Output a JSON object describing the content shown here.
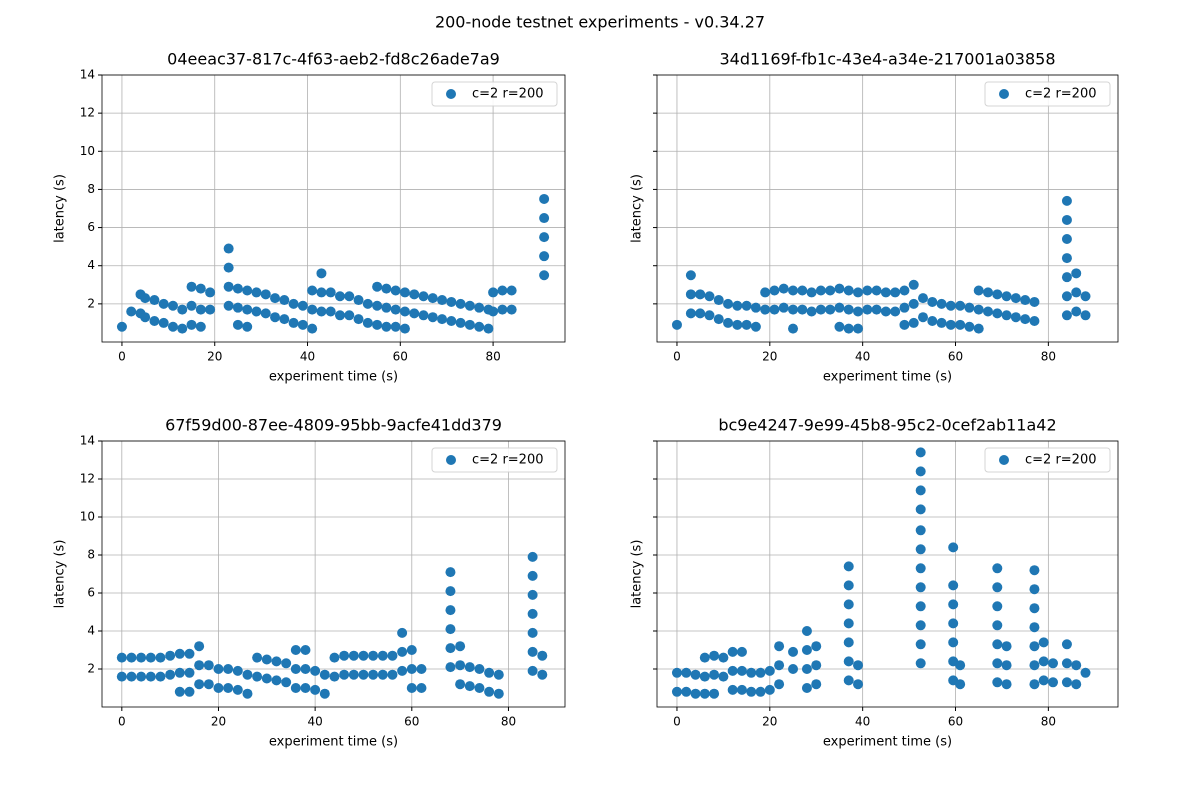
{
  "title": "200-node testnet experiments - v0.34.27",
  "chart_data": [
    {
      "type": "scatter",
      "title": "04eeac37-817c-4f63-aeb2-fd8c26ade7a9",
      "xlabel": "experiment time (s)",
      "ylabel": "latency (s)",
      "xlim": [
        -4.3,
        95.5
      ],
      "ylim": [
        0,
        14
      ],
      "xticks": [
        0,
        20,
        40,
        60,
        80
      ],
      "yticks": [
        2,
        4,
        6,
        8,
        10,
        12,
        14
      ],
      "ytick_labels": true,
      "grid": true,
      "legend": "upper right",
      "series": [
        {
          "name": "c=2 r=200",
          "color": "#1f77b4",
          "x": [
            0,
            2,
            4,
            4,
            5,
            5,
            7,
            7,
            9,
            9,
            11,
            11,
            13,
            13,
            15,
            15,
            15,
            17,
            17,
            17,
            19,
            19,
            23,
            23,
            23,
            23,
            25,
            25,
            25,
            27,
            27,
            27,
            29,
            29,
            31,
            31,
            33,
            33,
            35,
            35,
            37,
            37,
            39,
            39,
            41,
            41,
            41,
            43,
            43,
            43,
            45,
            45,
            47,
            47,
            49,
            49,
            51,
            51,
            53,
            53,
            55,
            55,
            55,
            57,
            57,
            57,
            59,
            59,
            59,
            61,
            61,
            61,
            63,
            63,
            65,
            65,
            67,
            67,
            69,
            69,
            71,
            71,
            73,
            73,
            75,
            75,
            77,
            77,
            79,
            79,
            80,
            80,
            82,
            82,
            84,
            84,
            91,
            91,
            91,
            91,
            91
          ],
          "y": [
            0.8,
            1.6,
            2.5,
            1.5,
            2.3,
            1.3,
            2.2,
            1.1,
            2.0,
            1.0,
            1.9,
            0.8,
            1.7,
            0.7,
            2.9,
            1.9,
            0.9,
            2.8,
            1.7,
            0.8,
            2.6,
            1.7,
            4.9,
            3.9,
            2.9,
            1.9,
            2.8,
            1.8,
            0.9,
            2.7,
            1.7,
            0.8,
            2.6,
            1.6,
            2.5,
            1.5,
            2.3,
            1.3,
            2.2,
            1.2,
            2.0,
            1.0,
            1.9,
            0.9,
            2.7,
            1.7,
            0.7,
            3.6,
            2.6,
            1.6,
            2.6,
            1.6,
            2.4,
            1.4,
            2.4,
            1.4,
            2.2,
            1.2,
            2.0,
            1.0,
            2.9,
            1.9,
            0.9,
            2.8,
            1.8,
            0.8,
            2.7,
            1.7,
            0.8,
            2.6,
            1.6,
            0.7,
            2.5,
            1.5,
            2.4,
            1.4,
            2.3,
            1.3,
            2.2,
            1.2,
            2.1,
            1.1,
            2.0,
            1.0,
            1.9,
            0.9,
            1.8,
            0.8,
            1.7,
            0.7,
            2.6,
            1.6,
            2.7,
            1.7,
            2.7,
            1.7,
            7.5,
            6.5,
            5.5,
            4.5,
            3.5
          ]
        }
      ]
    },
    {
      "type": "scatter",
      "title": "34d1169f-fb1c-43e4-a34e-217001a03858",
      "xlabel": "experiment time (s)",
      "ylabel": "latency (s)",
      "xlim": [
        -4.3,
        95
      ],
      "ylim": [
        0,
        14
      ],
      "xticks": [
        0,
        20,
        40,
        60,
        80
      ],
      "yticks": [
        2,
        4,
        6,
        8,
        10,
        12,
        14
      ],
      "ytick_labels": false,
      "grid": true,
      "legend": "upper right",
      "series": [
        {
          "name": "c=2 r=200",
          "color": "#1f77b4",
          "x": [
            0,
            3,
            3,
            3,
            5,
            5,
            7,
            7,
            9,
            9,
            11,
            11,
            13,
            13,
            15,
            15,
            17,
            17,
            19,
            19,
            21,
            21,
            23,
            23,
            25,
            25,
            25,
            27,
            27,
            29,
            29,
            31,
            31,
            33,
            33,
            35,
            35,
            35,
            37,
            37,
            37,
            39,
            39,
            39,
            41,
            41,
            43,
            43,
            45,
            45,
            47,
            47,
            49,
            49,
            49,
            51,
            51,
            51,
            53,
            53,
            55,
            55,
            57,
            57,
            59,
            59,
            61,
            61,
            63,
            63,
            65,
            65,
            65,
            67,
            67,
            69,
            69,
            71,
            71,
            73,
            73,
            75,
            75,
            77,
            77,
            84,
            84,
            84,
            84,
            84,
            84,
            84,
            86,
            86,
            86,
            88,
            88
          ],
          "y": [
            0.9,
            3.5,
            2.5,
            1.5,
            2.5,
            1.5,
            2.4,
            1.4,
            2.2,
            1.2,
            2.0,
            1.0,
            1.9,
            0.9,
            1.9,
            0.9,
            1.8,
            0.8,
            2.6,
            1.7,
            2.7,
            1.7,
            2.8,
            1.8,
            2.7,
            1.7,
            0.7,
            2.7,
            1.7,
            2.6,
            1.6,
            2.7,
            1.7,
            2.7,
            1.7,
            2.8,
            1.8,
            0.8,
            2.7,
            1.7,
            0.7,
            2.6,
            1.6,
            0.7,
            2.7,
            1.7,
            2.7,
            1.7,
            2.6,
            1.6,
            2.6,
            1.6,
            2.7,
            1.8,
            0.9,
            3.0,
            2.0,
            1.0,
            2.3,
            1.3,
            2.1,
            1.1,
            2.0,
            1.0,
            1.9,
            0.9,
            1.9,
            0.9,
            1.8,
            0.8,
            2.7,
            1.7,
            0.7,
            2.6,
            1.6,
            2.5,
            1.5,
            2.4,
            1.4,
            2.3,
            1.3,
            2.2,
            1.2,
            2.1,
            1.1,
            7.4,
            6.4,
            5.4,
            4.4,
            3.4,
            2.4,
            1.4,
            3.6,
            2.6,
            1.6,
            2.4,
            1.4
          ]
        }
      ]
    },
    {
      "type": "scatter",
      "title": "67f59d00-87ee-4809-95bb-9acfe41dd379",
      "xlabel": "experiment time (s)",
      "ylabel": "latency (s)",
      "xlim": [
        -4.1,
        91.7
      ],
      "ylim": [
        0,
        14
      ],
      "xticks": [
        0,
        20,
        40,
        60,
        80
      ],
      "yticks": [
        2,
        4,
        6,
        8,
        10,
        12,
        14
      ],
      "ytick_labels": true,
      "grid": true,
      "legend": "upper right",
      "series": [
        {
          "name": "c=2 r=200",
          "color": "#1f77b4",
          "x": [
            0,
            0,
            2,
            2,
            4,
            4,
            6,
            6,
            8,
            8,
            10,
            10,
            12,
            12,
            12,
            14,
            14,
            14,
            16,
            16,
            16,
            18,
            18,
            20,
            20,
            22,
            22,
            24,
            24,
            26,
            26,
            28,
            28,
            30,
            30,
            32,
            32,
            34,
            34,
            36,
            36,
            36,
            38,
            38,
            38,
            40,
            40,
            42,
            42,
            44,
            44,
            46,
            46,
            48,
            48,
            50,
            50,
            52,
            52,
            54,
            54,
            56,
            56,
            58,
            58,
            58,
            60,
            60,
            60,
            62,
            62,
            68,
            68,
            68,
            68,
            68,
            68,
            70,
            70,
            70,
            72,
            72,
            74,
            74,
            76,
            76,
            78,
            78,
            85,
            85,
            85,
            85,
            85,
            85,
            85,
            87,
            87
          ],
          "y": [
            2.6,
            1.6,
            2.6,
            1.6,
            2.6,
            1.6,
            2.6,
            1.6,
            2.6,
            1.6,
            2.7,
            1.7,
            2.8,
            1.8,
            0.8,
            2.8,
            1.8,
            0.8,
            3.2,
            2.2,
            1.2,
            2.2,
            1.2,
            2.0,
            1.0,
            2.0,
            1.0,
            1.9,
            0.9,
            1.7,
            0.7,
            2.6,
            1.6,
            2.5,
            1.5,
            2.4,
            1.4,
            2.3,
            1.3,
            3.0,
            2.0,
            1.0,
            3.0,
            2.0,
            1.0,
            1.9,
            0.9,
            1.7,
            0.7,
            2.6,
            1.6,
            2.7,
            1.7,
            2.7,
            1.7,
            2.7,
            1.7,
            2.7,
            1.7,
            2.7,
            1.7,
            2.7,
            1.7,
            3.9,
            2.9,
            1.9,
            3.0,
            2.0,
            1.0,
            2.0,
            1.0,
            7.1,
            6.1,
            5.1,
            4.1,
            3.1,
            2.1,
            3.2,
            2.2,
            1.2,
            2.1,
            1.1,
            2.0,
            1.0,
            1.8,
            0.8,
            1.7,
            0.7,
            7.9,
            6.9,
            5.9,
            4.9,
            3.9,
            2.9,
            1.9,
            2.7,
            1.7
          ]
        }
      ]
    },
    {
      "type": "scatter",
      "title": "bc9e4247-9e99-45b8-95c2-0cef2ab11a42",
      "xlabel": "experiment time (s)",
      "ylabel": "latency (s)",
      "xlim": [
        -4.3,
        95
      ],
      "ylim": [
        0,
        14
      ],
      "xticks": [
        0,
        20,
        40,
        60,
        80
      ],
      "yticks": [
        2,
        4,
        6,
        8,
        10,
        12,
        14
      ],
      "ytick_labels": false,
      "grid": true,
      "legend": "upper right",
      "series": [
        {
          "name": "c=2 r=200",
          "color": "#1f77b4",
          "x": [
            0,
            0,
            2,
            2,
            4,
            4,
            6,
            6,
            6,
            8,
            8,
            8,
            10,
            10,
            12,
            12,
            12,
            14,
            14,
            14,
            16,
            16,
            18,
            18,
            20,
            20,
            22,
            22,
            22,
            25,
            25,
            28,
            28,
            28,
            28,
            30,
            30,
            30,
            37,
            37,
            37,
            37,
            37,
            37,
            37,
            39,
            39,
            52.5,
            52.5,
            52.5,
            52.5,
            52.5,
            52.5,
            52.5,
            52.5,
            52.5,
            52.5,
            52.5,
            52.5,
            59.5,
            59.5,
            59.5,
            59.5,
            59.5,
            59.5,
            59.5,
            61,
            61,
            69,
            69,
            69,
            69,
            69,
            69,
            69,
            71,
            71,
            71,
            77,
            77,
            77,
            77,
            77,
            77,
            77,
            79,
            79,
            79,
            81,
            81,
            84,
            84,
            84,
            86,
            86,
            88
          ],
          "y": [
            1.8,
            0.8,
            1.8,
            0.8,
            1.7,
            0.7,
            2.6,
            1.6,
            0.7,
            2.7,
            1.7,
            0.7,
            2.6,
            1.6,
            2.9,
            1.9,
            0.9,
            2.9,
            1.9,
            0.9,
            1.8,
            0.8,
            1.8,
            0.8,
            1.9,
            0.9,
            3.2,
            2.2,
            1.2,
            2.9,
            2.0,
            4.0,
            3.0,
            2.0,
            1.0,
            3.2,
            2.2,
            1.2,
            7.4,
            6.4,
            5.4,
            4.4,
            3.4,
            2.4,
            1.4,
            2.2,
            1.2,
            13.4,
            12.4,
            11.4,
            10.4,
            9.3,
            8.3,
            7.3,
            6.3,
            5.3,
            4.3,
            3.3,
            2.3,
            8.4,
            6.4,
            5.4,
            4.4,
            3.4,
            2.4,
            1.4,
            2.2,
            1.2,
            7.3,
            6.3,
            5.3,
            4.3,
            3.3,
            2.3,
            1.3,
            3.2,
            2.2,
            1.2,
            7.2,
            6.2,
            5.2,
            4.2,
            3.2,
            2.2,
            1.2,
            3.4,
            2.4,
            1.4,
            2.3,
            1.3,
            3.3,
            2.3,
            1.3,
            2.2,
            1.2,
            1.8
          ]
        }
      ]
    }
  ]
}
